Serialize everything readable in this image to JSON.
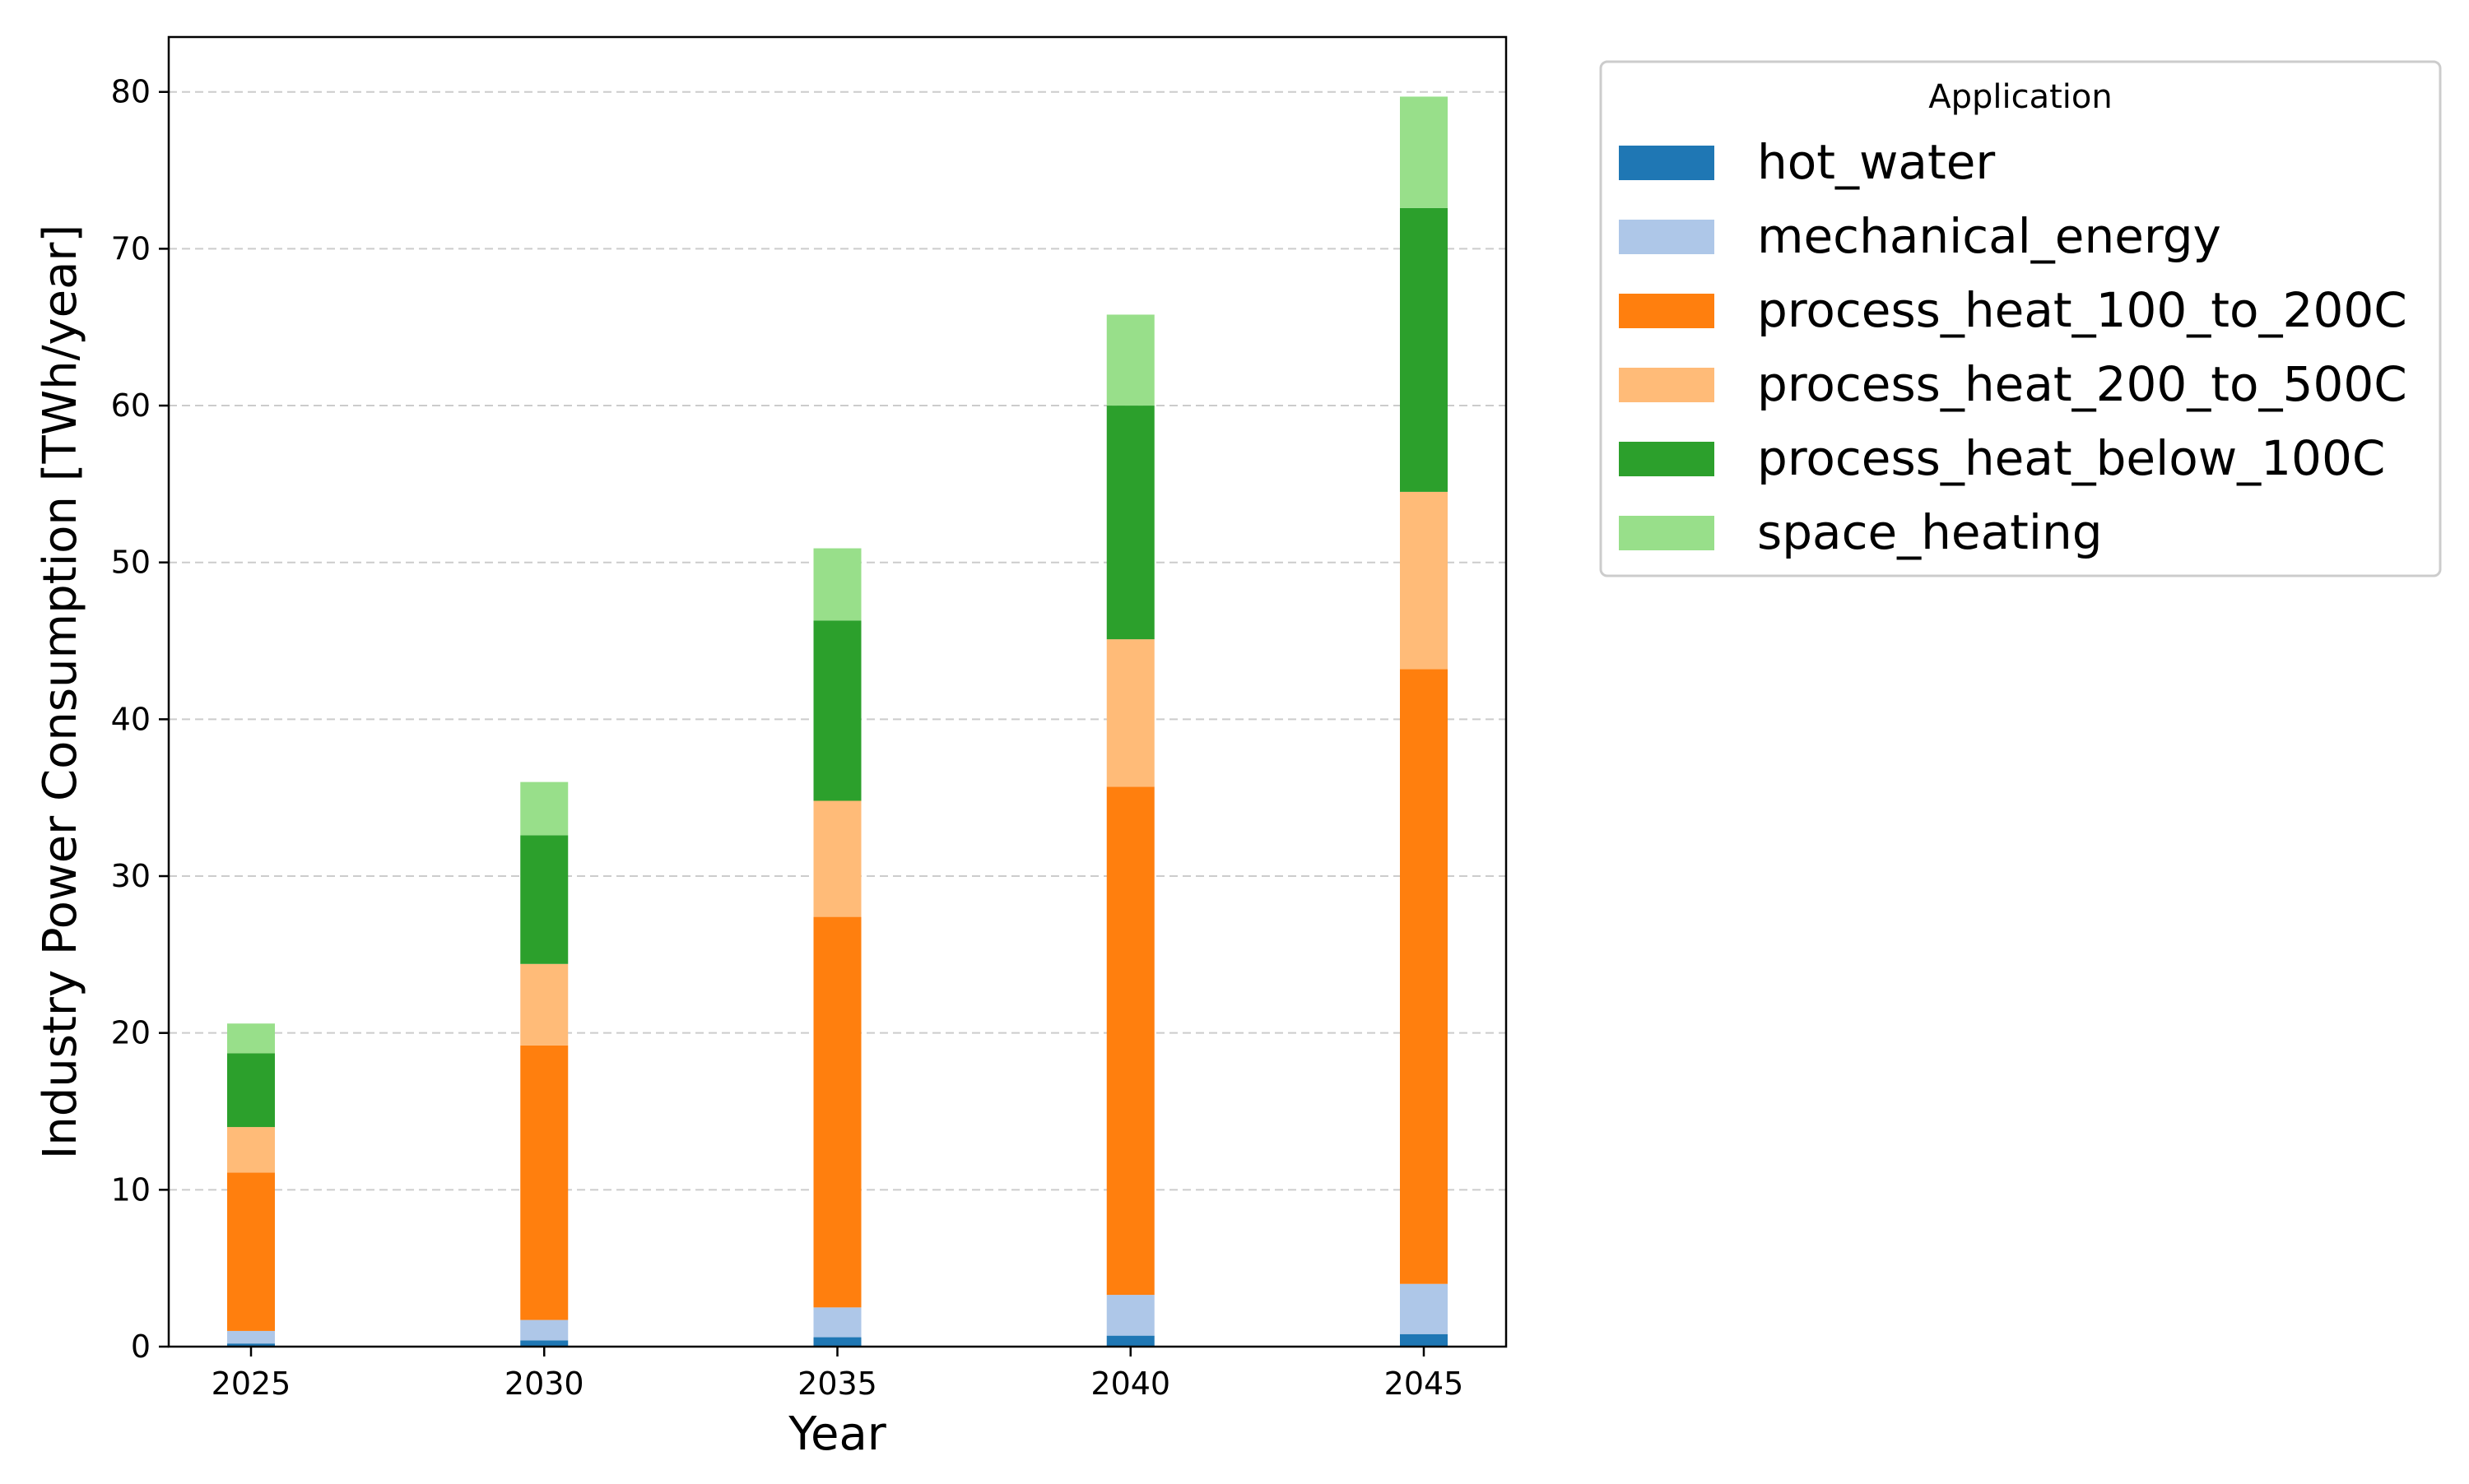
{
  "chart_data": {
    "type": "bar",
    "stacked": true,
    "title": "",
    "xlabel": "Year",
    "ylabel": "Industry Power Consumption [TWh/year]",
    "categories": [
      "2025",
      "2030",
      "2035",
      "2040",
      "2045"
    ],
    "ylim": [
      0,
      83.5
    ],
    "yticks": [
      0,
      10,
      20,
      30,
      40,
      50,
      60,
      70,
      80
    ],
    "grid": "y-dashed",
    "legend": {
      "title": "Application",
      "placement": "outside-top-right"
    },
    "series": [
      {
        "name": "hot_water",
        "color": "#1f77b4",
        "values": [
          0.2,
          0.4,
          0.6,
          0.7,
          0.8
        ]
      },
      {
        "name": "mechanical_energy",
        "color": "#aec7e8",
        "values": [
          0.8,
          1.3,
          1.9,
          2.6,
          3.2
        ]
      },
      {
        "name": "process_heat_100_to_200C",
        "color": "#ff7f0e",
        "values": [
          10.1,
          17.5,
          24.9,
          32.4,
          39.2
        ]
      },
      {
        "name": "process_heat_200_to_500C",
        "color": "#ffbb78",
        "values": [
          2.9,
          5.2,
          7.4,
          9.4,
          11.3
        ]
      },
      {
        "name": "process_heat_below_100C",
        "color": "#2ca02c",
        "values": [
          4.7,
          8.2,
          11.5,
          14.9,
          18.1
        ]
      },
      {
        "name": "space_heating",
        "color": "#98df8a",
        "values": [
          1.9,
          3.4,
          4.6,
          5.8,
          7.1
        ]
      }
    ]
  }
}
